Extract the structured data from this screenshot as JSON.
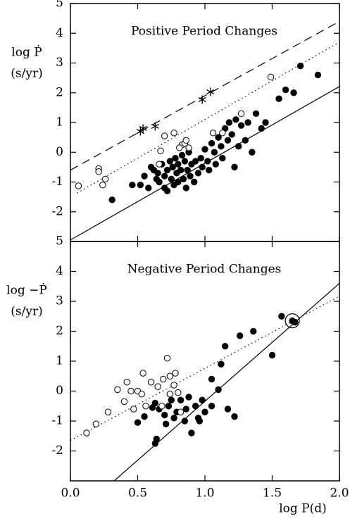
{
  "chart_data": [
    {
      "type": "scatter",
      "title": "Positive Period Changes",
      "ylabel": [
        "log Ṗ",
        "(s/yr)"
      ],
      "xlim": [
        0,
        2
      ],
      "ylim": [
        -3,
        5
      ],
      "yticks": [
        -2,
        -1,
        0,
        1,
        2,
        3,
        4,
        5
      ],
      "series": [
        {
          "marker": "filled",
          "x": [
            0.31,
            0.46,
            0.52,
            0.55,
            0.58,
            0.6,
            0.62,
            0.64,
            0.65,
            0.66,
            0.68,
            0.7,
            0.7,
            0.72,
            0.72,
            0.74,
            0.75,
            0.76,
            0.77,
            0.78,
            0.79,
            0.8,
            0.8,
            0.82,
            0.83,
            0.84,
            0.85,
            0.86,
            0.87,
            0.88,
            0.89,
            0.9,
            0.92,
            0.93,
            0.95,
            0.97,
            0.98,
            1.0,
            1.02,
            1.03,
            1.05,
            1.07,
            1.08,
            1.1,
            1.12,
            1.13,
            1.15,
            1.17,
            1.18,
            1.2,
            1.22,
            1.23,
            1.25,
            1.27,
            1.3,
            1.32,
            1.35,
            1.38,
            1.42,
            1.45,
            1.55,
            1.6,
            1.66,
            1.71,
            1.84
          ],
          "values": [
            -1.6,
            -1.1,
            -1.1,
            -0.8,
            -1.2,
            -0.5,
            -0.6,
            -0.9,
            -0.7,
            -1.0,
            -0.4,
            -0.8,
            -1.2,
            -0.6,
            -1.3,
            -0.3,
            -0.9,
            -0.5,
            -1.1,
            -0.2,
            -0.7,
            -1.0,
            -0.4,
            -0.6,
            -0.1,
            -0.9,
            -0.3,
            -1.2,
            -0.6,
            0.0,
            -0.8,
            -0.4,
            -1.0,
            -0.3,
            -0.7,
            -0.2,
            -0.5,
            0.1,
            -0.3,
            -0.6,
            0.3,
            0.0,
            -0.4,
            0.5,
            0.2,
            -0.2,
            0.8,
            0.4,
            1.0,
            0.6,
            -0.5,
            1.1,
            0.2,
            0.9,
            0.4,
            1.0,
            0.0,
            1.3,
            0.8,
            1.0,
            1.8,
            2.1,
            2.0,
            2.9,
            2.6
          ]
        },
        {
          "marker": "open",
          "x": [
            0.06,
            0.21,
            0.21,
            0.24,
            0.26,
            0.67,
            0.77,
            0.83,
            0.85,
            0.88,
            0.86,
            0.81,
            0.66,
            1.06,
            1.13,
            1.27,
            1.49,
            0.7
          ],
          "values": [
            -1.13,
            -0.55,
            -0.65,
            -1.1,
            -0.9,
            0.05,
            0.65,
            0.25,
            0.3,
            0.15,
            0.4,
            0.15,
            -0.4,
            0.65,
            0.65,
            1.3,
            2.53,
            0.55
          ]
        },
        {
          "marker": "star",
          "x": [
            0.52,
            0.54,
            0.63,
            0.98,
            1.04
          ],
          "values": [
            0.7,
            0.8,
            0.87,
            1.77,
            2.03
          ]
        }
      ],
      "lines": [
        {
          "style": "solid",
          "x": [
            0,
            2
          ],
          "values": [
            -2.95,
            2.21
          ]
        },
        {
          "style": "dotted",
          "x": [
            0.05,
            2
          ],
          "values": [
            -1.37,
            3.7
          ]
        },
        {
          "style": "dashed",
          "x": [
            0,
            2
          ],
          "values": [
            -0.6,
            4.4
          ]
        }
      ]
    },
    {
      "type": "scatter",
      "title": "Negative Period Changes",
      "ylabel": [
        "log −Ṗ",
        "(s/yr)"
      ],
      "xlabel": "log P(d)",
      "xlim": [
        0,
        2
      ],
      "ylim": [
        -3,
        5
      ],
      "yticks": [
        -2,
        -1,
        0,
        1,
        2,
        3,
        4,
        5
      ],
      "xticks": [
        {
          "value": 0,
          "label": "0.0"
        },
        0.5,
        {
          "value": 1,
          "label": "1.0"
        },
        1.5,
        {
          "value": 2,
          "label": "2.0"
        }
      ],
      "series": [
        {
          "marker": "filled",
          "x": [
            0.5,
            0.55,
            0.61,
            0.63,
            0.66,
            0.7,
            0.71,
            0.73,
            0.75,
            0.77,
            0.79,
            0.82,
            0.85,
            0.86,
            0.88,
            0.9,
            0.93,
            0.95,
            0.98,
            1.0,
            1.05,
            1.1,
            1.12,
            1.15,
            1.17,
            1.22,
            1.26,
            1.36,
            1.5,
            1.57,
            1.65,
            1.67,
            0.64,
            0.63,
            1.05,
            0.96
          ],
          "values": [
            -1.05,
            -0.85,
            -0.55,
            -0.4,
            -0.6,
            -0.8,
            -1.1,
            -0.5,
            -0.3,
            -0.9,
            -0.7,
            -0.3,
            -1.0,
            -0.6,
            -0.2,
            -1.4,
            -0.5,
            -0.9,
            -0.3,
            -0.7,
            0.4,
            0.05,
            0.9,
            1.5,
            -0.6,
            -0.85,
            1.85,
            2.0,
            1.2,
            2.5,
            2.35,
            2.3,
            -1.6,
            -1.75,
            -0.5,
            -1.0
          ]
        },
        {
          "marker": "open",
          "x": [
            0.12,
            0.19,
            0.28,
            0.35,
            0.4,
            0.42,
            0.45,
            0.47,
            0.5,
            0.53,
            0.54,
            0.56,
            0.6,
            0.65,
            0.69,
            0.72,
            0.74,
            0.77,
            0.78,
            0.8,
            0.74,
            0.68,
            0.82
          ],
          "values": [
            -1.4,
            -1.1,
            -0.7,
            0.05,
            -0.35,
            0.3,
            0.0,
            -0.6,
            0.0,
            -0.1,
            0.6,
            -0.5,
            0.3,
            0.15,
            0.4,
            1.1,
            0.5,
            0.2,
            0.6,
            -0.05,
            -0.1,
            -0.5,
            -0.7
          ]
        }
      ],
      "highlight": {
        "x": 1.65,
        "y": 2.35
      },
      "lines": [
        {
          "style": "solid",
          "x": [
            0.325,
            2
          ],
          "values": [
            -3,
            3.6
          ]
        },
        {
          "style": "dotted",
          "x": [
            0,
            2
          ],
          "values": [
            -1.65,
            3.17
          ]
        }
      ]
    }
  ]
}
